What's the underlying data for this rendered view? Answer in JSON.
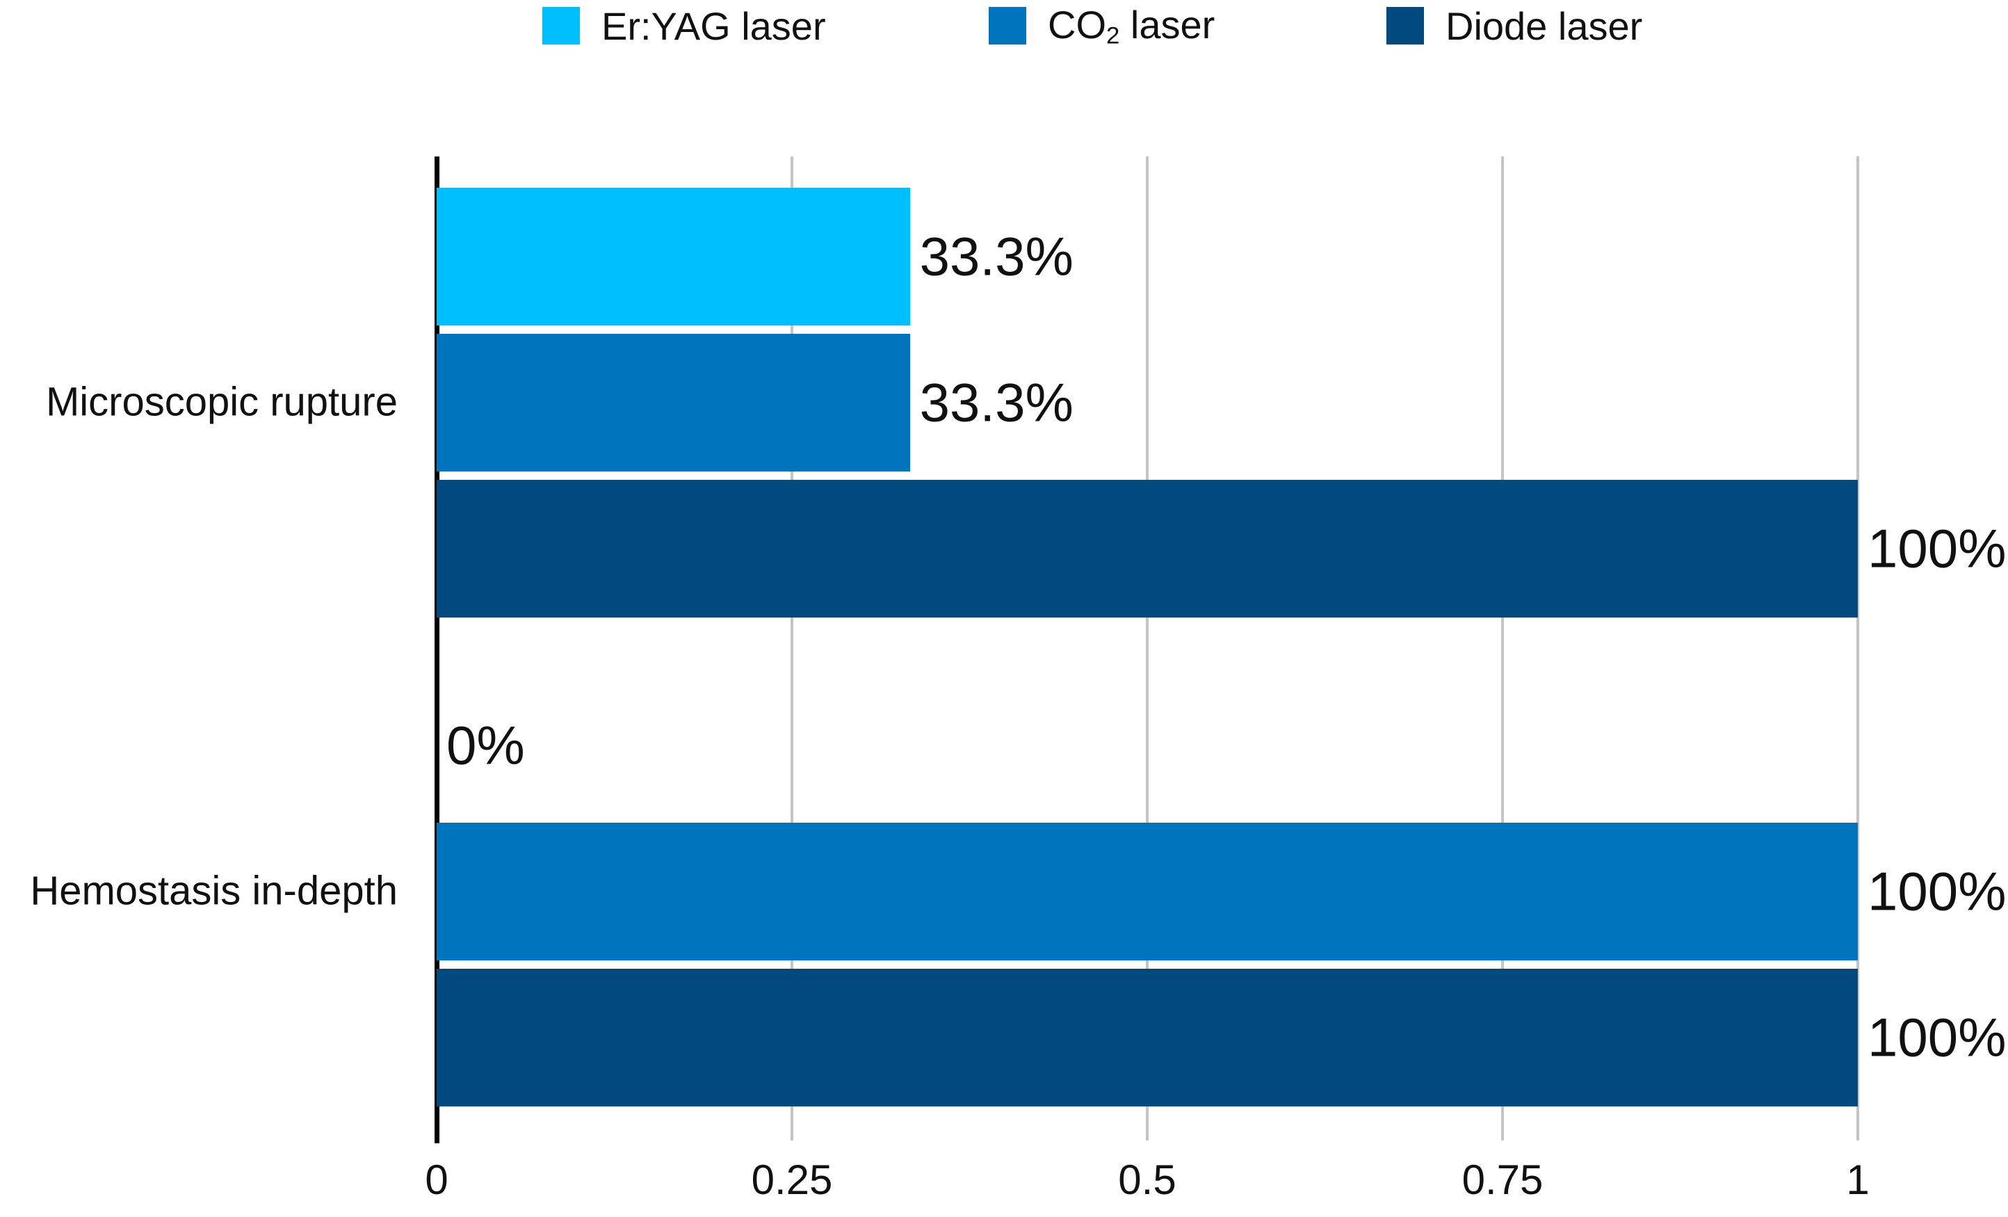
{
  "chart_data": {
    "type": "bar",
    "orientation": "horizontal",
    "title": "",
    "xlabel": "",
    "ylabel": "",
    "categories": [
      "Microscopic rupture",
      "Hemostasis in-depth"
    ],
    "series": [
      {
        "name": "Er:YAG laser",
        "slug": "er-yag-laser",
        "color": "#00BFFF",
        "legend": {
          "text": "Er:YAG laser",
          "sub": "",
          "suffix": ""
        },
        "values": [
          0.333,
          0
        ],
        "value_labels": [
          "33.3%",
          "0%"
        ]
      },
      {
        "name": "CO2 laser",
        "slug": "co2-laser",
        "color": "#0074BC",
        "legend": {
          "text": "CO",
          "sub": "2",
          "suffix": " laser"
        },
        "values": [
          0.333,
          1
        ],
        "value_labels": [
          "33.3%",
          "100%"
        ]
      },
      {
        "name": "Diode laser",
        "slug": "diode-laser",
        "color": "#004A80",
        "legend": {
          "text": "Diode laser",
          "sub": "",
          "suffix": ""
        },
        "values": [
          1,
          1
        ],
        "value_labels": [
          "100%",
          "100%"
        ]
      }
    ],
    "xlim": [
      0,
      1
    ],
    "x_ticks": [
      0,
      0.25,
      0.5,
      0.75,
      1
    ],
    "x_tick_labels": [
      "0",
      "0.25",
      "0.5",
      "0.75",
      "1"
    ],
    "legend_position": "top",
    "grid": "vertical-gridlines",
    "colors": {
      "axis": "#000000",
      "gridline": "#c4c4c4",
      "text": "#111111",
      "background": "#ffffff"
    }
  }
}
